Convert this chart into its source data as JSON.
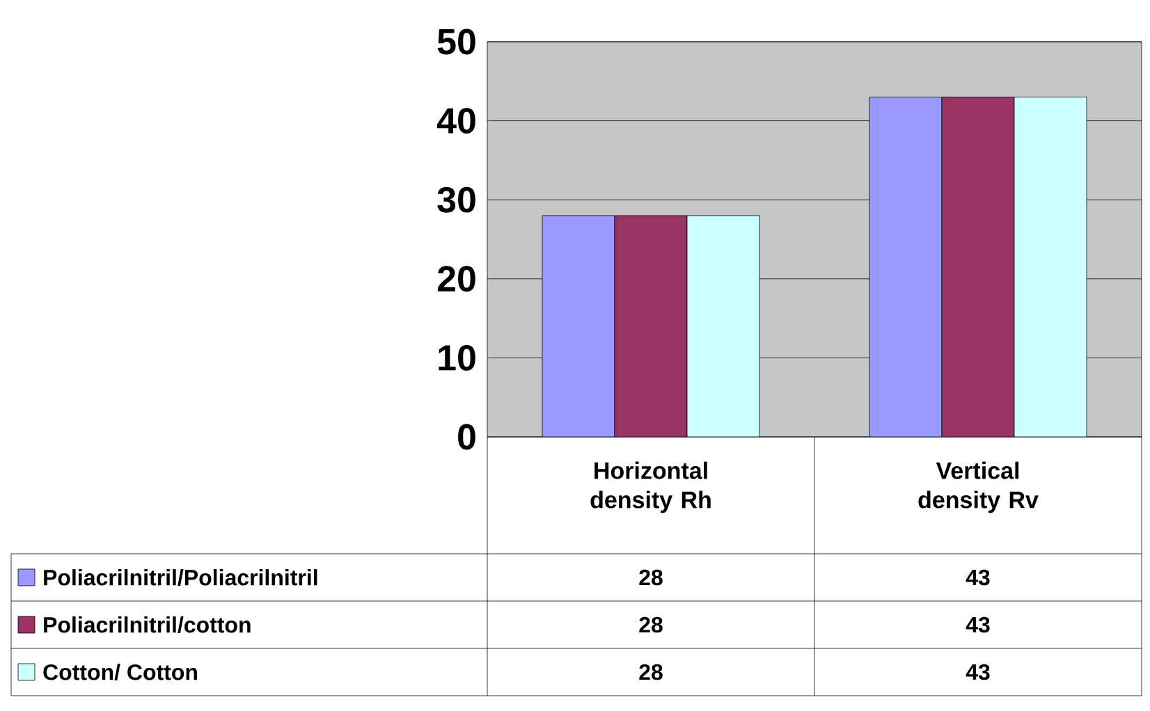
{
  "chart_data": {
    "type": "bar",
    "categories": [
      "Horizontal density Rh",
      "Vertical density Rv"
    ],
    "series": [
      {
        "name": "Poliacrilnitril/Poliacrilnitril",
        "color": "#9999ff",
        "values": [
          28,
          43
        ]
      },
      {
        "name": "Poliacrilnitril/cotton",
        "color": "#993366",
        "values": [
          28,
          43
        ]
      },
      {
        "name": "Cotton/ Cotton",
        "color": "#ccffff",
        "values": [
          28,
          43
        ]
      }
    ],
    "ylim": [
      0,
      50
    ],
    "yticks": [
      0,
      10,
      20,
      30,
      40,
      50
    ],
    "grid": "y",
    "legend": "bottom",
    "data_labels": true
  }
}
